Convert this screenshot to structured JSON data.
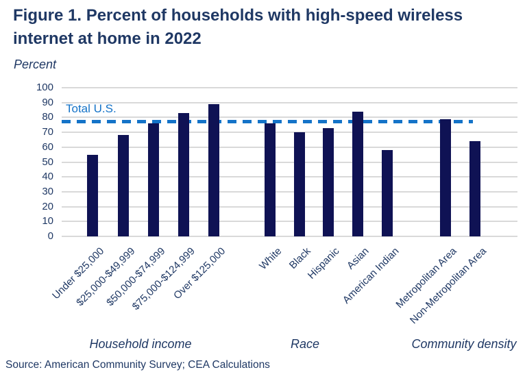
{
  "figure": {
    "title": "Figure 1. Percent of households with high-speed wireless internet at home in 2022",
    "unit_label": "Percent",
    "source": "Source: American Community Survey; CEA Calculations"
  },
  "chart_data": {
    "type": "bar",
    "title": "Figure 1. Percent of households with high-speed wireless internet at home in 2022",
    "ylabel": "Percent",
    "xlabel": "",
    "ylim": [
      0,
      100
    ],
    "ytick_step": 10,
    "grid": true,
    "legend_position": "none",
    "bar_color": "#0F1254",
    "text_color": "#1F3864",
    "gridline_color": "#D9D9D9",
    "reference_line": {
      "label": "Total U.S.",
      "value": 77,
      "color": "#1473C8",
      "style": "dashed"
    },
    "groups": [
      {
        "label": "Household income",
        "categories": [
          "Under $25,000",
          "$25,000-$49,999",
          "$50,000-$74,999",
          "$75,000-$124,999",
          "Over $125,000"
        ],
        "values": [
          55,
          68,
          76,
          83,
          89
        ]
      },
      {
        "label": "Race",
        "categories": [
          "White",
          "Black",
          "Hispanic",
          "Asian",
          "American Indian"
        ],
        "values": [
          76,
          70,
          73,
          84,
          58
        ]
      },
      {
        "label": "Community density",
        "categories": [
          "Metropolitan Area",
          "Non-Metropolitan Area"
        ],
        "values": [
          79,
          64
        ]
      }
    ]
  }
}
